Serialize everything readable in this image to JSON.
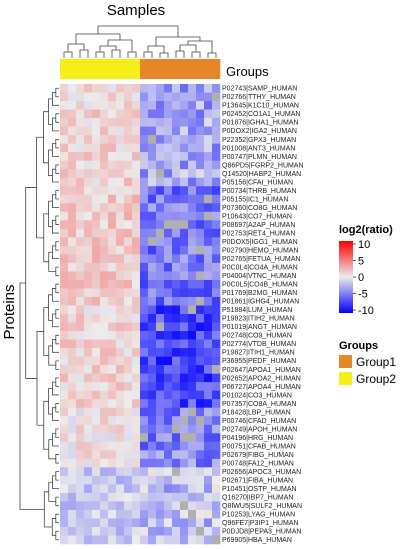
{
  "figure": {
    "column_title": "Samples",
    "row_title": "Proteins",
    "annotation_label": "Groups"
  },
  "legend": {
    "colorbar_title": "log2(ratio)",
    "colorbar_ticks": [
      "10",
      "5",
      "0",
      "-5",
      "-10"
    ],
    "groups_title": "Groups",
    "groups": [
      {
        "name": "Group1",
        "color": "#e8872a"
      },
      {
        "name": "Group2",
        "color": "#f5ee18"
      }
    ]
  },
  "colors": {
    "high": "#ff0000",
    "mid": "#ececec",
    "low": "#0000ff",
    "missing": "#b0b0b0",
    "dendrogram": "#444444"
  },
  "chart_data": {
    "type": "heatmap",
    "title": "Samples",
    "ylabel": "Proteins",
    "color_scale": {
      "min": -10,
      "max": 10,
      "center": 0
    },
    "n_columns": 20,
    "column_groups": [
      "Group2",
      "Group2",
      "Group2",
      "Group2",
      "Group2",
      "Group2",
      "Group2",
      "Group2",
      "Group2",
      "Group2",
      "Group1",
      "Group1",
      "Group1",
      "Group1",
      "Group1",
      "Group1",
      "Group1",
      "Group1",
      "Group1",
      "Group1"
    ],
    "proteins": [
      "P02743|SAMP_HUMAN",
      "P02766|TTHY_HUMAN",
      "P13645|K1C10_HUMAN",
      "P02452|CO1A1_HUMAN",
      "P01876|IGHA1_HUMAN",
      "P0DOX2|IGA2_HUMAN",
      "P22352|GPX3_HUMAN",
      "P01008|ANT3_HUMAN",
      "P00747|PLMN_HUMAN",
      "Q86PD5|FGRP2_HUMAN",
      "Q14520|HABP2_HUMAN",
      "P05156|CFAI_HUMAN",
      "P00734|THRB_HUMAN",
      "P05155|IC1_HUMAN",
      "P07360|CO8G_HUMAN",
      "P10643|CO7_HUMAN",
      "P08697|A2AP_HUMAN",
      "P02753|RET4_HUMAN",
      "P0DOX5|IGG1_HUMAN",
      "P02790|HEMO_HUMAN",
      "P02765|FETUA_HUMAN",
      "P0C0L4|CO4A_HUMAN",
      "P04004|VTNC_HUMAN",
      "P0C0L5|CO4B_HUMAN",
      "P01769|B2MG_HUMAN",
      "P01861|IGHG4_HUMAN",
      "P51884|LUM_HUMAN",
      "P19823|ITIH2_HUMAN",
      "P01019|ANGT_HUMAN",
      "P02748|CO9_HUMAN",
      "P02774|VTDB_HUMAN",
      "P19827|ITIH1_HUMAN",
      "P36955|PEDF_HUMAN",
      "P02647|APOA1_HUMAN",
      "P02652|APOA2_HUMAN",
      "P06727|APOA4_HUMAN",
      "P01024|CO3_HUMAN",
      "P07357|CO8A_HUMAN",
      "P18428|LBP_HUMAN",
      "P00746|CFAD_HUMAN",
      "P02749|APOH_HUMAN",
      "P04196|HRG_HUMAN",
      "P00751|CFAB_HUMAN",
      "P02679|FIBG_HUMAN",
      "P00748|FA12_HUMAN",
      "P02656|APOC3_HUMAN",
      "P02671|FIBA_HUMAN",
      "P10451|OSTP_HUMAN",
      "Q16270|IBP7_HUMAN",
      "Q8IWU5|SULF2_HUMAN",
      "P10253|LYAG_HUMAN",
      "Q96FE7|P3IP1_HUMAN",
      "P0DJD8|PEPA3_HUMAN",
      "P69905|HBA_HUMAN"
    ],
    "value_profile": [
      {
        "rows": "1-2",
        "group2_mean": 0.5,
        "group1_mean": -3.5
      },
      {
        "rows": "3-12",
        "group2_mean": 1.0,
        "group1_mean": -3.0
      },
      {
        "rows": "13-26",
        "group2_mean": 1.5,
        "group1_mean": -5.0
      },
      {
        "rows": "27-38",
        "group2_mean": 1.0,
        "group1_mean": -7.0
      },
      {
        "rows": "39-45",
        "group2_mean": 0.5,
        "group1_mean": -4.5
      },
      {
        "rows": "46-54",
        "group2_mean": -1.5,
        "group1_mean": -2.0
      }
    ]
  }
}
